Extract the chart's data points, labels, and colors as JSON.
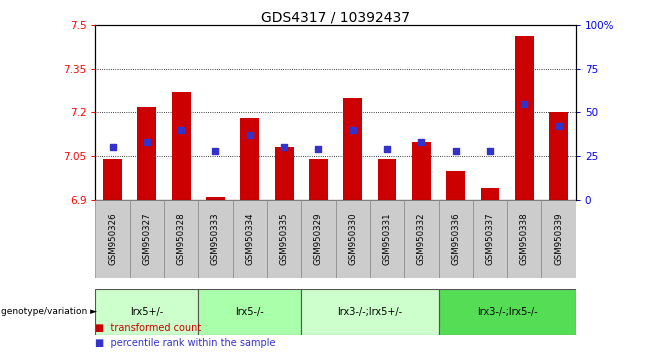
{
  "title": "GDS4317 / 10392437",
  "samples": [
    "GSM950326",
    "GSM950327",
    "GSM950328",
    "GSM950333",
    "GSM950334",
    "GSM950335",
    "GSM950329",
    "GSM950330",
    "GSM950331",
    "GSM950332",
    "GSM950336",
    "GSM950337",
    "GSM950338",
    "GSM950339"
  ],
  "bar_values": [
    7.04,
    7.22,
    7.27,
    6.91,
    7.18,
    7.08,
    7.04,
    7.25,
    7.04,
    7.1,
    7.0,
    6.94,
    7.46,
    7.2
  ],
  "dot_values": [
    30,
    33,
    40,
    28,
    37,
    30,
    29,
    40,
    29,
    33,
    28,
    28,
    55,
    42
  ],
  "y_min": 6.9,
  "y_max": 7.5,
  "y_ticks": [
    6.9,
    7.05,
    7.2,
    7.35,
    7.5
  ],
  "y_right_ticks": [
    0,
    25,
    50,
    75,
    100
  ],
  "bar_color": "#cc0000",
  "dot_color": "#3333cc",
  "groups": [
    {
      "label": "lrx5+/-",
      "start": 0,
      "end": 3,
      "color": "#ccffcc"
    },
    {
      "label": "lrx5-/-",
      "start": 3,
      "end": 6,
      "color": "#aaffaa"
    },
    {
      "label": "lrx3-/-;lrx5+/-",
      "start": 6,
      "end": 10,
      "color": "#ccffcc"
    },
    {
      "label": "lrx3-/-;lrx5-/-",
      "start": 10,
      "end": 14,
      "color": "#55dd55"
    }
  ],
  "group_label_prefix": "genotype/variation",
  "legend_bar_label": "transformed count",
  "legend_dot_label": "percentile rank within the sample",
  "background_color": "#ffffff",
  "plot_bg_color": "#ffffff",
  "title_fontsize": 10,
  "tick_fontsize": 7.5,
  "bar_width": 0.55
}
